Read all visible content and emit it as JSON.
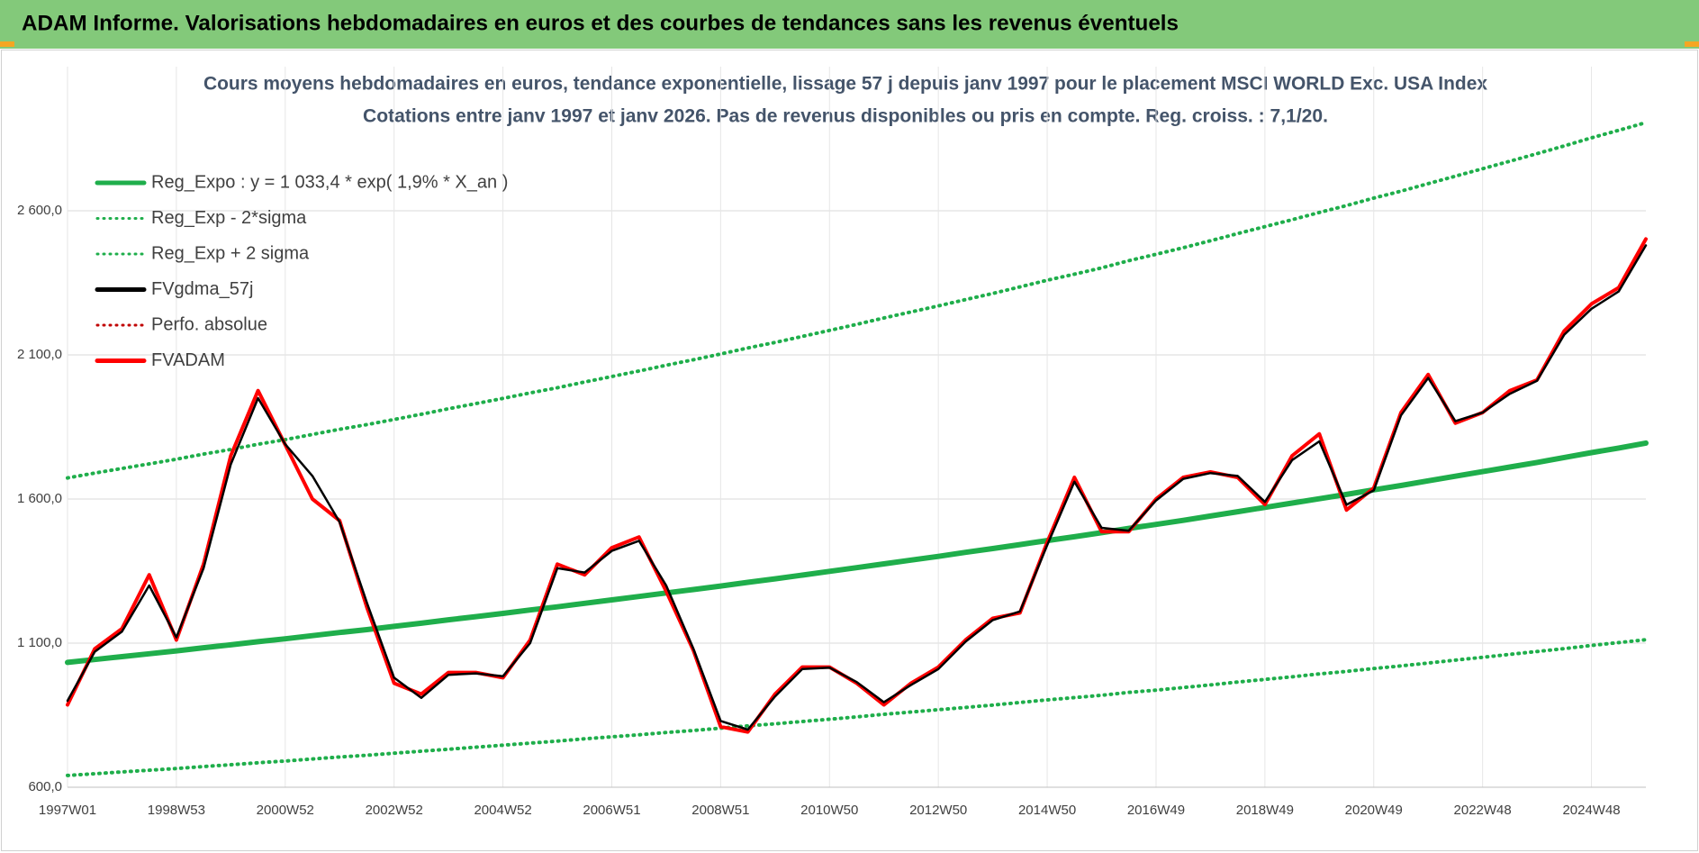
{
  "header": {
    "title": "ADAM Informe. Valorisations hebdomadaires en euros et des courbes de tendances sans les revenus éventuels"
  },
  "chart_data": {
    "type": "line",
    "title": "Cours moyens hebdomadaires en euros, tendance exponentielle, lissage 57 j depuis janv 1997 pour le placement MSCI WORLD Exc. USA Index",
    "subtitle": "Cotations entre janv 1997 et janv 2026. Pas de revenus disponibles ou pris en compte. Reg. croiss. : 7,1/20.",
    "categories": [
      "1997W01",
      null,
      null,
      null,
      "1998W53",
      null,
      null,
      null,
      "2000W52",
      null,
      null,
      null,
      "2002W52",
      null,
      null,
      null,
      "2004W52",
      null,
      null,
      null,
      "2006W51",
      null,
      null,
      null,
      "2008W51",
      null,
      null,
      null,
      "2010W50",
      null,
      null,
      null,
      "2012W50",
      null,
      null,
      null,
      "2014W50",
      null,
      null,
      null,
      "2016W49",
      null,
      null,
      null,
      "2018W49",
      null,
      null,
      null,
      "2020W49",
      null,
      null,
      null,
      "2022W48",
      null,
      null,
      null,
      "2024W48",
      null,
      null
    ],
    "ylim": [
      600,
      3100
    ],
    "yticks": [
      {
        "value": 600,
        "label": "600,0"
      },
      {
        "value": 1100,
        "label": "1 100,0"
      },
      {
        "value": 1600,
        "label": "1 600,0"
      },
      {
        "value": 2100,
        "label": "2 100,0"
      },
      {
        "value": 2600,
        "label": "2 600,0"
      }
    ],
    "grid": true,
    "legend": "top-left",
    "series": [
      {
        "name": "Reg_Expo : y = 1 033,4 * exp( 1,9% *  X_an )",
        "color": "#1fae4b",
        "style": "solid",
        "values": [
          1033,
          1043,
          1053,
          1063,
          1073,
          1084,
          1094,
          1105,
          1115,
          1126,
          1137,
          1147,
          1158,
          1169,
          1181,
          1192,
          1203,
          1215,
          1226,
          1238,
          1250,
          1262,
          1274,
          1286,
          1298,
          1311,
          1323,
          1336,
          1349,
          1362,
          1375,
          1388,
          1401,
          1415,
          1428,
          1442,
          1456,
          1469,
          1483,
          1498,
          1512,
          1526,
          1541,
          1556,
          1571,
          1586,
          1601,
          1616,
          1632,
          1647,
          1663,
          1679,
          1695,
          1711,
          1727,
          1744,
          1761,
          1777,
          1794
        ]
      },
      {
        "name": "Reg_Exp - 2*sigma",
        "color": "#1fae4b",
        "style": "dotted",
        "values": [
          641,
          647,
          653,
          659,
          665,
          672,
          678,
          685,
          691,
          698,
          705,
          711,
          718,
          725,
          732,
          739,
          746,
          753,
          760,
          768,
          775,
          782,
          790,
          797,
          805,
          813,
          820,
          828,
          836,
          844,
          853,
          861,
          869,
          877,
          885,
          894,
          903,
          911,
          919,
          929,
          937,
          946,
          955,
          965,
          974,
          983,
          993,
          1002,
          1012,
          1021,
          1031,
          1041,
          1051,
          1061,
          1071,
          1081,
          1092,
          1102,
          1112
        ]
      },
      {
        "name": "Reg_Exp + 2 sigma",
        "color": "#1fae4b",
        "style": "dotted",
        "values": [
          1673,
          1690,
          1706,
          1722,
          1738,
          1756,
          1772,
          1790,
          1806,
          1824,
          1842,
          1858,
          1876,
          1894,
          1913,
          1931,
          1949,
          1968,
          1986,
          2006,
          2025,
          2044,
          2064,
          2083,
          2103,
          2124,
          2143,
          2164,
          2185,
          2206,
          2228,
          2249,
          2270,
          2292,
          2313,
          2336,
          2359,
          2380,
          2402,
          2427,
          2449,
          2472,
          2496,
          2521,
          2545,
          2569,
          2594,
          2618,
          2644,
          2668,
          2694,
          2720,
          2746,
          2772,
          2798,
          2825,
          2853,
          2879,
          2906
        ]
      },
      {
        "name": "FVgdma_57j",
        "color": "#000000",
        "style": "solid",
        "values": [
          900,
          1070,
          1140,
          1300,
          1120,
          1360,
          1720,
          1950,
          1790,
          1680,
          1520,
          1240,
          980,
          910,
          990,
          995,
          985,
          1100,
          1360,
          1345,
          1420,
          1455,
          1300,
          1080,
          830,
          800,
          915,
          1010,
          1015,
          965,
          895,
          955,
          1010,
          1105,
          1180,
          1210,
          1440,
          1660,
          1500,
          1490,
          1595,
          1670,
          1690,
          1680,
          1590,
          1735,
          1800,
          1580,
          1630,
          1890,
          2020,
          1870,
          1900,
          1965,
          2010,
          2170,
          2260,
          2320,
          2480
        ]
      },
      {
        "name": "Perfo. absolue",
        "color": "#c00000",
        "style": "dotted",
        "values": [
          null,
          null,
          null,
          null,
          null,
          null,
          null,
          null,
          null,
          null,
          null,
          null,
          null,
          null,
          null,
          null,
          null,
          null,
          null,
          null,
          null,
          null,
          null,
          null,
          null,
          null,
          null,
          null,
          null,
          null,
          null,
          null,
          null,
          null,
          null,
          null,
          null,
          null,
          null,
          null,
          null,
          null,
          null,
          null,
          null,
          null,
          null,
          null,
          null,
          null,
          null,
          null,
          null,
          null,
          null,
          null,
          null,
          null,
          null
        ]
      },
      {
        "name": "FVADAM",
        "color": "#ff0000",
        "style": "solid",
        "values": [
          886,
          1080,
          1150,
          1337,
          1111,
          1374,
          1750,
          1976,
          1788,
          1600,
          1525,
          1224,
          961,
          923,
          998,
          998,
          980,
          1111,
          1374,
          1337,
          1431,
          1468,
          1280,
          1074,
          810,
          792,
          923,
          1017,
          1017,
          961,
          886,
          961,
          1017,
          1111,
          1186,
          1205,
          1450,
          1675,
          1487,
          1487,
          1600,
          1675,
          1694,
          1675,
          1581,
          1750,
          1826,
          1562,
          1638,
          1900,
          2032,
          1863,
          1900,
          1976,
          2013,
          2183,
          2277,
          2333,
          2502
        ]
      }
    ]
  }
}
